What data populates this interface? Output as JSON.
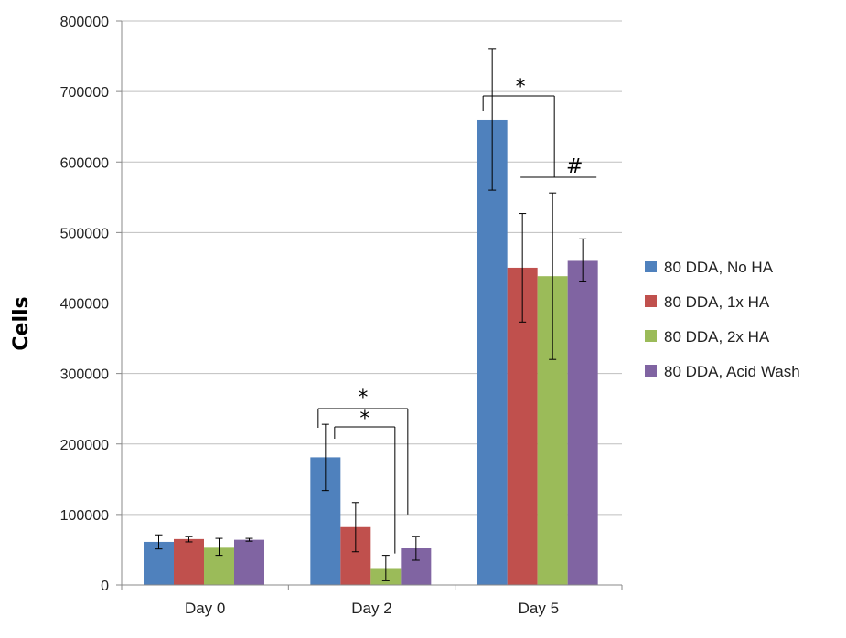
{
  "chart_data": {
    "type": "bar",
    "title": "",
    "xlabel": "",
    "ylabel": "Cells",
    "ylim": [
      0,
      800000
    ],
    "yticks": [
      0,
      100000,
      200000,
      300000,
      400000,
      500000,
      600000,
      700000,
      800000
    ],
    "ytick_labels": [
      "0",
      "100000",
      "200000",
      "300000",
      "400000",
      "500000",
      "600000",
      "700000",
      "800000"
    ],
    "grid": true,
    "legend_position": "right",
    "categories": [
      "Day 0",
      "Day 2",
      "Day 5"
    ],
    "series": [
      {
        "name": "80 DDA, No HA",
        "color": "#4F81BD",
        "values": [
          61000,
          181000,
          660000
        ],
        "errors": [
          10000,
          47000,
          100000
        ]
      },
      {
        "name": "80 DDA, 1x HA",
        "color": "#C0504D",
        "values": [
          65000,
          82000,
          450000
        ],
        "errors": [
          4000,
          35000,
          77000
        ]
      },
      {
        "name": "80 DDA, 2x HA",
        "color": "#9BBB59",
        "values": [
          54000,
          24000,
          438000
        ],
        "errors": [
          12000,
          18000,
          118000
        ]
      },
      {
        "name": "80 DDA, Acid Wash",
        "color": "#8064A2",
        "values": [
          64000,
          52000,
          461000
        ],
        "errors": [
          2000,
          17000,
          30000
        ]
      }
    ],
    "annotations": [
      {
        "text": "*",
        "category": "Day 2",
        "compares": [
          "80 DDA, No HA",
          "80 DDA, 2x HA"
        ]
      },
      {
        "text": "*",
        "category": "Day 2",
        "compares": [
          "80 DDA, No HA",
          "80 DDA, Acid Wash"
        ]
      },
      {
        "text": "*",
        "category": "Day 5",
        "compares": [
          "80 DDA, No HA",
          "80 DDA, 1x HA / 2x HA / Acid Wash"
        ]
      },
      {
        "text": "#",
        "category": "Day 5",
        "compares": [
          "80 DDA, 1x HA",
          "80 DDA, 2x HA",
          "80 DDA, Acid Wash"
        ]
      }
    ]
  }
}
